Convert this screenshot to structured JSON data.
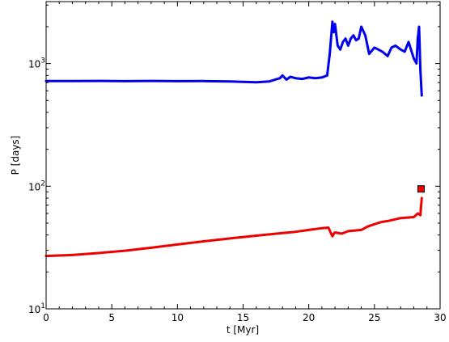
{
  "chart_data": {
    "type": "line",
    "xlabel": "t [Myr]",
    "ylabel": "P [days]",
    "xlim": [
      0,
      30
    ],
    "ylim": [
      10,
      3200
    ],
    "yscale": "log",
    "grid": false,
    "x_ticks": [
      0,
      5,
      10,
      15,
      20,
      25,
      30
    ],
    "y_ticks": [
      {
        "value": 10,
        "base": "10",
        "exp": "1"
      },
      {
        "value": 100,
        "base": "10",
        "exp": "2"
      },
      {
        "value": 1000,
        "base": "10",
        "exp": "3"
      }
    ],
    "series": [
      {
        "color": "#0000ee",
        "x": [
          0,
          2,
          4,
          6,
          8,
          10,
          12,
          14,
          15,
          16,
          17,
          17.8,
          18.0,
          18.3,
          18.6,
          19.0,
          19.5,
          20.0,
          20.5,
          21.0,
          21.4,
          21.6,
          21.8,
          21.9,
          22.0,
          22.1,
          22.2,
          22.4,
          22.6,
          22.8,
          23.0,
          23.2,
          23.4,
          23.6,
          23.8,
          24.0,
          24.3,
          24.6,
          25.0,
          25.3,
          25.6,
          26.0,
          26.3,
          26.6,
          27.0,
          27.3,
          27.6,
          28.0,
          28.2,
          28.3,
          28.4,
          28.5,
          28.6
        ],
        "values": [
          720,
          720,
          722,
          718,
          722,
          718,
          720,
          715,
          710,
          705,
          715,
          760,
          800,
          740,
          780,
          760,
          750,
          770,
          760,
          770,
          800,
          1200,
          2200,
          1800,
          2100,
          1700,
          1400,
          1300,
          1500,
          1600,
          1400,
          1600,
          1700,
          1550,
          1600,
          2000,
          1700,
          1200,
          1350,
          1300,
          1250,
          1150,
          1350,
          1400,
          1300,
          1250,
          1500,
          1100,
          1000,
          1600,
          2000,
          900,
          550
        ]
      },
      {
        "color": "#ee0000",
        "x": [
          0,
          2,
          4,
          6,
          8,
          10,
          12,
          14,
          16,
          18,
          19,
          20,
          21,
          21.5,
          21.7,
          21.8,
          21.9,
          22.0,
          22.5,
          23,
          23.5,
          24,
          24.5,
          25,
          25.5,
          26,
          27,
          28,
          28.3,
          28.5,
          28.6
        ],
        "values": [
          27,
          27.5,
          28.5,
          29.8,
          31.5,
          33.5,
          35.5,
          37.5,
          39.5,
          41.5,
          42.5,
          44,
          45.5,
          46,
          41,
          39,
          41,
          42,
          41,
          43,
          43.5,
          44,
          47,
          49,
          51,
          52,
          55,
          56,
          60,
          58,
          80
        ]
      }
    ],
    "marker": {
      "x": 28.55,
      "y": 95,
      "shape": "square",
      "color": "#ee0000"
    }
  }
}
